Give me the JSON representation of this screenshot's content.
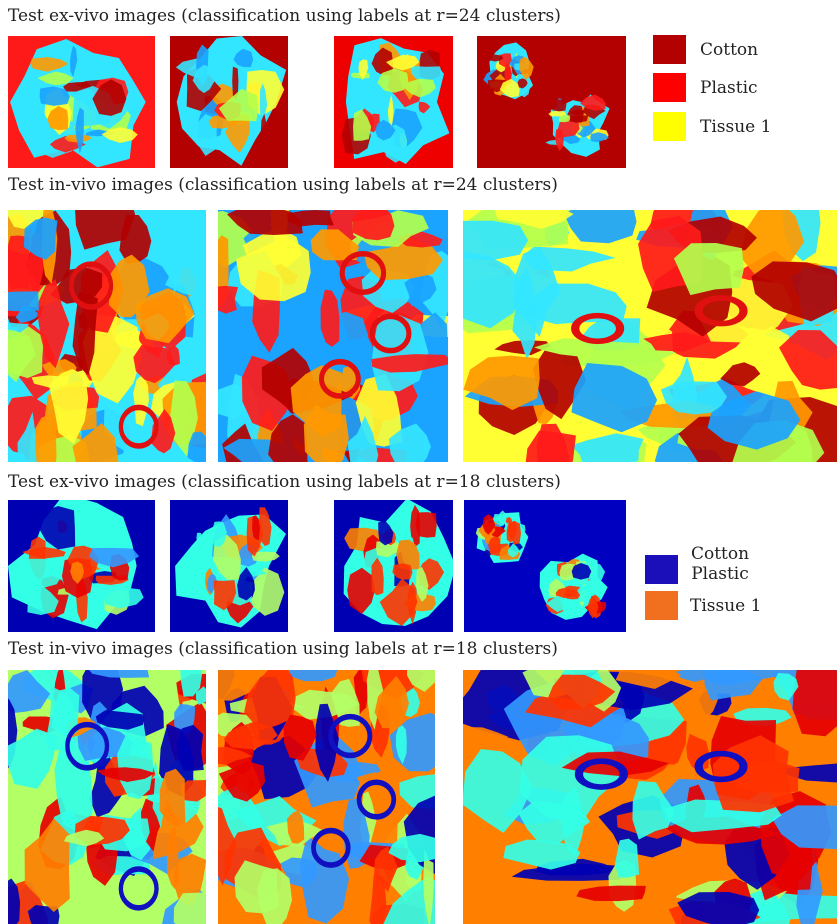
{
  "sections": [
    {
      "title": "Test ex-vivo images (classification using labels at r=24 clusters)"
    },
    {
      "title": "Test in-vivo images (classification using labels at r=24 clusters)"
    },
    {
      "title": "Test ex-vivo images (classification using labels at r=18 clusters)"
    },
    {
      "title": "Test in-vivo images (classification using labels at r=18 clusters)"
    }
  ],
  "legend_r24": [
    {
      "label": "Cotton",
      "color": "#b30000"
    },
    {
      "label": "Plastic",
      "color": "#ff0000"
    },
    {
      "label": "Tissue 1",
      "color": "#ffff00"
    }
  ],
  "legend_r18": [
    {
      "label": "Cotton",
      "color": "#1a0fb8"
    },
    {
      "label": "Plastic",
      "color": ""
    },
    {
      "label": "Tissue 1",
      "color": "#f07020"
    }
  ],
  "palettes": {
    "r24": [
      "#33e6ff",
      "#ffff33",
      "#ff9900",
      "#1aa3ff",
      "#b3ff4d",
      "#b30000",
      "#ff1a1a"
    ],
    "r18": [
      "#33ffe6",
      "#b3ff66",
      "#ff7f00",
      "#e60000",
      "#0000b3",
      "#ff3300",
      "#3399ff"
    ]
  },
  "circle_colors": {
    "r24": "#e01010",
    "r18": "#1010c0"
  }
}
